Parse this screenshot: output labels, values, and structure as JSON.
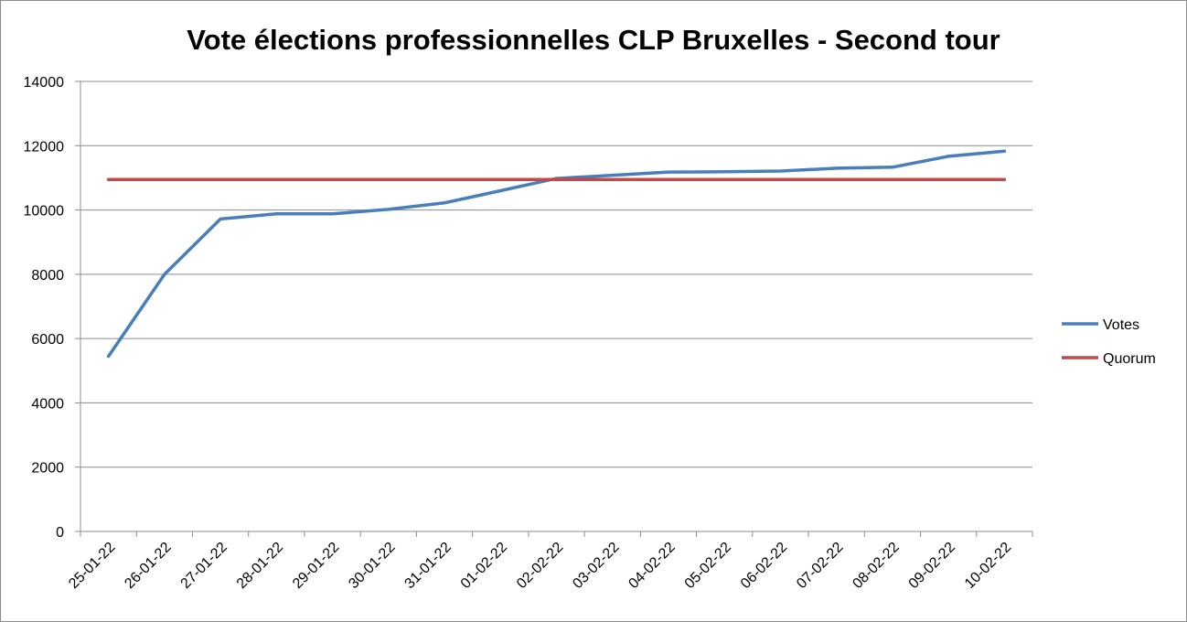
{
  "chart_data": {
    "type": "line",
    "title": "Vote élections professionnelles CLP Bruxelles - Second tour",
    "categories": [
      "25-01-22",
      "26-01-22",
      "27-01-22",
      "28-01-22",
      "29-01-22",
      "30-01-22",
      "31-01-22",
      "01-02-22",
      "02-02-22",
      "03-02-22",
      "04-02-22",
      "05-02-22",
      "06-02-22",
      "07-02-22",
      "08-02-22",
      "09-02-22",
      "10-02-22"
    ],
    "series": [
      {
        "name": "Votes",
        "color": "#4a7ebb",
        "values": [
          5450,
          8000,
          9720,
          9880,
          9880,
          10020,
          10220,
          10600,
          10980,
          11080,
          11180,
          11190,
          11210,
          11300,
          11330,
          11670,
          11830
        ]
      },
      {
        "name": "Quorum",
        "color": "#be4b48",
        "values": [
          10950,
          10950,
          10950,
          10950,
          10950,
          10950,
          10950,
          10950,
          10950,
          10950,
          10950,
          10950,
          10950,
          10950,
          10950,
          10950,
          10950
        ]
      }
    ],
    "y_ticks": [
      "0",
      "2000",
      "4000",
      "6000",
      "8000",
      "10000",
      "12000",
      "14000"
    ],
    "ylim": [
      0,
      14000
    ],
    "grid": "horizontal",
    "legend_position": "right"
  }
}
